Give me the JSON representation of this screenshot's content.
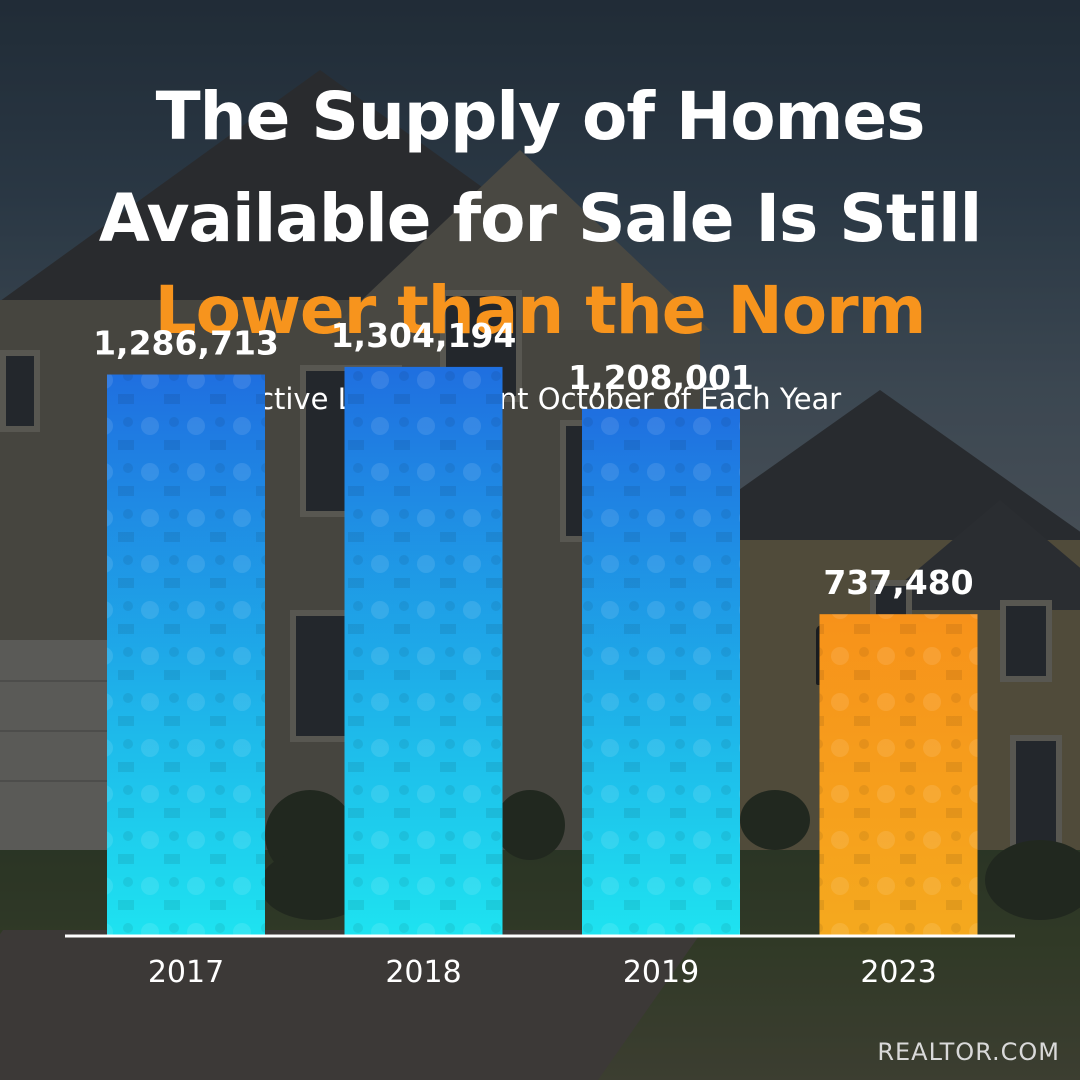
{
  "title_lines": [
    "The Supply of Homes",
    "Available for Sale Is Still",
    "Lower than the Norm"
  ],
  "subtitle": "Active Listing Count October of Each Year",
  "source": "REALTOR.COM",
  "colors": {
    "highlight": "#f7941d",
    "bar_blue_top": "#1f6fe0",
    "bar_blue_bottom": "#1ee3f0",
    "bar_orange_top": "#f7921a",
    "bar_orange_bottom": "#f5a91e"
  },
  "chart_data": {
    "type": "bar",
    "title": "The Supply of Homes Available for Sale Is Still Lower than the Norm",
    "subtitle": "Active Listing Count October of Each Year",
    "categories": [
      "2017",
      "2018",
      "2019",
      "2023"
    ],
    "values": [
      1286713,
      1304194,
      1208001,
      737480
    ],
    "value_labels": [
      "1,286,713",
      "1,304,194",
      "1,208,001",
      "737,480"
    ],
    "highlight_index": 3,
    "ylim": [
      0,
      1650000
    ],
    "grid": false,
    "legend": "none"
  }
}
